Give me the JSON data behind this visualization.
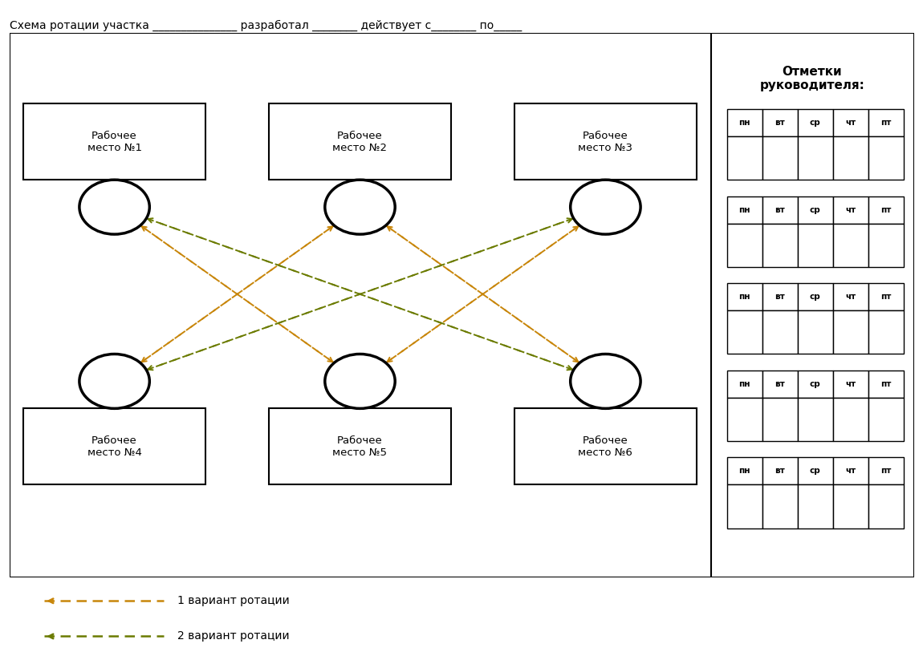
{
  "title_text": "Схема ротации участка _______________ разработал ________ действует с________ по_____",
  "node_labels": [
    "Рабочее\nместо №1",
    "Рабочее\nместо №2",
    "Рабочее\nместо №3",
    "Рабочее\nместо №4",
    "Рабочее\nместо №5",
    "Рабочее\nместо №6"
  ],
  "color_orange": "#C8860A",
  "color_olive": "#6B7B00",
  "legend_labels": [
    "1 вариант ротации",
    "2 вариант ротации"
  ],
  "days": [
    "пн",
    "вт",
    "ср",
    "чт",
    "пт"
  ],
  "num_tables": 5,
  "panel_label": "Отметки\nруководителя:"
}
